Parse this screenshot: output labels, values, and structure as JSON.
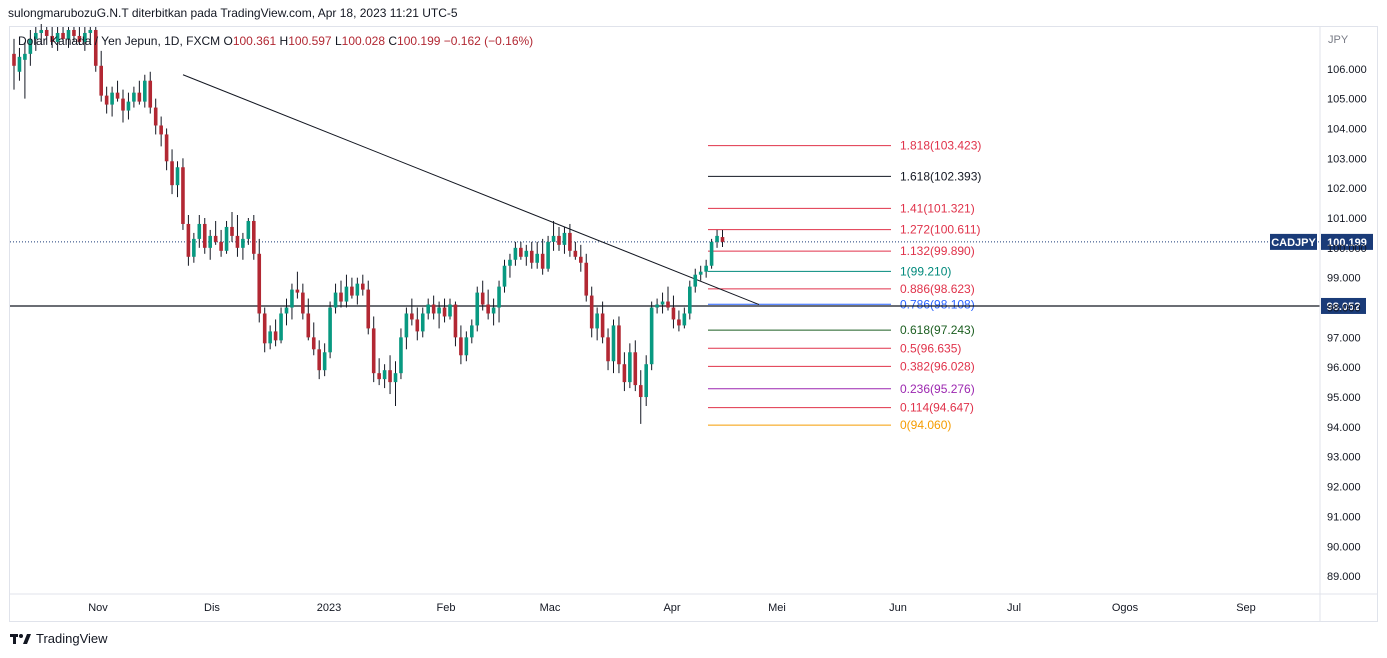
{
  "header": {
    "publish_line": "sulongmarubozuG.N.T diterbitkan pada TradingView.com, Apr 18, 2023 11:21 UTC-5"
  },
  "legend": {
    "instrument": "Dolar Kanada / Yen Jepun, 1D, FXCM",
    "o_label": "O",
    "o_value": "100.361",
    "h_label": "H",
    "h_value": "100.597",
    "l_label": "L",
    "l_value": "100.028",
    "c_label": "C",
    "c_value": "100.199",
    "change": "−0.162 (−0.16%)"
  },
  "footer": {
    "brand": "TradingView"
  },
  "colors": {
    "up": "#089981",
    "down": "#b22833",
    "price_badge": "#1a3b78"
  },
  "chart_data": {
    "type": "candlestick",
    "symbol": "CADJPY",
    "currency_label": "JPY",
    "ylim": [
      88.4,
      107.4
    ],
    "y_ticks": [
      89,
      90,
      91,
      92,
      93,
      94,
      95,
      96,
      97,
      98,
      99,
      100,
      101,
      102,
      103,
      104,
      105,
      106
    ],
    "y_tick_labels": [
      "89.000",
      "90.000",
      "91.000",
      "92.000",
      "93.000",
      "94.000",
      "95.000",
      "96.000",
      "97.000",
      "98.000",
      "99.000",
      "100.000",
      "101.000",
      "102.000",
      "103.000",
      "104.000",
      "105.000",
      "106.000"
    ],
    "x_labels": [
      "Nov",
      "Dis",
      "2023",
      "Feb",
      "Mac",
      "Apr",
      "Mei",
      "Jun",
      "Jul",
      "Ogos",
      "Sep"
    ],
    "last_price": {
      "label": "CADJPY",
      "value": 100.199,
      "text": "100.199"
    },
    "horizontal_line": {
      "value": 98.052,
      "text": "98.052"
    },
    "trendline": {
      "from": {
        "date": "2022-11-21",
        "price": 105.8
      },
      "to": {
        "date": "2023-04-18",
        "price": 98.1
      }
    },
    "fib_levels": [
      {
        "ratio": "1.818",
        "price": 103.423,
        "label": "1.818(103.423)",
        "color": "#e0324a"
      },
      {
        "ratio": "1.618",
        "price": 102.393,
        "label": "1.618(102.393)",
        "color": "#131722"
      },
      {
        "ratio": "1.41",
        "price": 101.321,
        "label": "1.41(101.321)",
        "color": "#e0324a"
      },
      {
        "ratio": "1.272",
        "price": 100.611,
        "label": "1.272(100.611)",
        "color": "#e0324a"
      },
      {
        "ratio": "1.132",
        "price": 99.89,
        "label": "1.132(99.890)",
        "color": "#e0324a"
      },
      {
        "ratio": "1",
        "price": 99.21,
        "label": "1(99.210)",
        "color": "#00897b"
      },
      {
        "ratio": "0.886",
        "price": 98.623,
        "label": "0.886(98.623)",
        "color": "#e0324a"
      },
      {
        "ratio": "0.786",
        "price": 98.108,
        "label": "0.786(98.108)",
        "color": "#2962ff"
      },
      {
        "ratio": "0.618",
        "price": 97.243,
        "label": "0.618(97.243)",
        "color": "#1b5e20"
      },
      {
        "ratio": "0.5",
        "price": 96.635,
        "label": "0.5(96.635)",
        "color": "#e0324a"
      },
      {
        "ratio": "0.382",
        "price": 96.028,
        "label": "0.382(96.028)",
        "color": "#e0324a"
      },
      {
        "ratio": "0.236",
        "price": 95.276,
        "label": "0.236(95.276)",
        "color": "#9c27b0"
      },
      {
        "ratio": "0.114",
        "price": 94.647,
        "label": "0.114(94.647)",
        "color": "#e0324a"
      },
      {
        "ratio": "0",
        "price": 94.06,
        "label": "0(94.060)",
        "color": "#f59c00"
      }
    ],
    "candles": [
      {
        "o": 106.5,
        "h": 107.0,
        "l": 105.3,
        "c": 106.1
      },
      {
        "o": 105.9,
        "h": 106.7,
        "l": 105.6,
        "c": 106.4
      },
      {
        "o": 106.3,
        "h": 106.9,
        "l": 105.0,
        "c": 106.5
      },
      {
        "o": 106.5,
        "h": 107.3,
        "l": 106.1,
        "c": 107.0
      },
      {
        "o": 107.0,
        "h": 107.4,
        "l": 106.6,
        "c": 107.2
      },
      {
        "o": 107.2,
        "h": 107.5,
        "l": 106.8,
        "c": 107.3
      },
      {
        "o": 107.3,
        "h": 107.4,
        "l": 106.8,
        "c": 107.1
      },
      {
        "o": 107.1,
        "h": 107.4,
        "l": 106.7,
        "c": 106.9
      },
      {
        "o": 106.9,
        "h": 107.4,
        "l": 106.6,
        "c": 107.2
      },
      {
        "o": 107.2,
        "h": 107.4,
        "l": 106.9,
        "c": 107.0
      },
      {
        "o": 107.0,
        "h": 107.4,
        "l": 106.7,
        "c": 107.3
      },
      {
        "o": 107.3,
        "h": 107.4,
        "l": 106.9,
        "c": 107.1
      },
      {
        "o": 107.1,
        "h": 107.4,
        "l": 106.8,
        "c": 106.9
      },
      {
        "o": 106.9,
        "h": 107.4,
        "l": 106.6,
        "c": 107.2
      },
      {
        "o": 107.2,
        "h": 107.4,
        "l": 106.8,
        "c": 107.3
      },
      {
        "o": 107.3,
        "h": 107.4,
        "l": 105.9,
        "c": 106.1
      },
      {
        "o": 106.1,
        "h": 106.6,
        "l": 104.9,
        "c": 105.1
      },
      {
        "o": 105.1,
        "h": 105.4,
        "l": 104.5,
        "c": 104.8
      },
      {
        "o": 104.8,
        "h": 105.4,
        "l": 104.4,
        "c": 105.2
      },
      {
        "o": 105.2,
        "h": 105.6,
        "l": 104.9,
        "c": 105.0
      },
      {
        "o": 105.0,
        "h": 105.3,
        "l": 104.2,
        "c": 104.6
      },
      {
        "o": 104.6,
        "h": 105.2,
        "l": 104.3,
        "c": 104.9
      },
      {
        "o": 104.9,
        "h": 105.4,
        "l": 104.7,
        "c": 105.2
      },
      {
        "o": 105.2,
        "h": 105.6,
        "l": 104.8,
        "c": 104.9
      },
      {
        "o": 104.9,
        "h": 105.8,
        "l": 104.7,
        "c": 105.6
      },
      {
        "o": 105.6,
        "h": 105.9,
        "l": 104.5,
        "c": 104.7
      },
      {
        "o": 104.7,
        "h": 105.0,
        "l": 103.8,
        "c": 104.1
      },
      {
        "o": 104.1,
        "h": 104.4,
        "l": 103.4,
        "c": 103.8
      },
      {
        "o": 103.8,
        "h": 104.0,
        "l": 102.6,
        "c": 102.9
      },
      {
        "o": 102.9,
        "h": 103.3,
        "l": 101.8,
        "c": 102.1
      },
      {
        "o": 102.1,
        "h": 102.9,
        "l": 101.7,
        "c": 102.7
      },
      {
        "o": 102.7,
        "h": 103.0,
        "l": 100.6,
        "c": 100.8
      },
      {
        "o": 100.8,
        "h": 101.1,
        "l": 99.4,
        "c": 99.7
      },
      {
        "o": 99.7,
        "h": 100.5,
        "l": 99.5,
        "c": 100.3
      },
      {
        "o": 100.3,
        "h": 101.1,
        "l": 100.0,
        "c": 100.8
      },
      {
        "o": 100.8,
        "h": 101.0,
        "l": 99.8,
        "c": 100.0
      },
      {
        "o": 100.0,
        "h": 100.6,
        "l": 99.6,
        "c": 100.4
      },
      {
        "o": 100.4,
        "h": 100.9,
        "l": 100.1,
        "c": 100.2
      },
      {
        "o": 100.2,
        "h": 100.6,
        "l": 99.7,
        "c": 99.9
      },
      {
        "o": 99.9,
        "h": 100.9,
        "l": 99.8,
        "c": 100.7
      },
      {
        "o": 100.7,
        "h": 101.2,
        "l": 100.2,
        "c": 100.4
      },
      {
        "o": 100.4,
        "h": 101.1,
        "l": 99.7,
        "c": 100.0
      },
      {
        "o": 100.0,
        "h": 100.5,
        "l": 99.6,
        "c": 100.3
      },
      {
        "o": 100.3,
        "h": 101.0,
        "l": 100.1,
        "c": 100.9
      },
      {
        "o": 100.9,
        "h": 101.1,
        "l": 99.6,
        "c": 99.8
      },
      {
        "o": 99.8,
        "h": 100.3,
        "l": 97.5,
        "c": 97.8
      },
      {
        "o": 97.8,
        "h": 98.0,
        "l": 96.5,
        "c": 96.8
      },
      {
        "o": 96.8,
        "h": 97.4,
        "l": 96.6,
        "c": 97.2
      },
      {
        "o": 97.2,
        "h": 97.6,
        "l": 96.7,
        "c": 96.9
      },
      {
        "o": 96.9,
        "h": 98.0,
        "l": 96.8,
        "c": 97.8
      },
      {
        "o": 97.8,
        "h": 98.3,
        "l": 97.4,
        "c": 98.0
      },
      {
        "o": 98.0,
        "h": 98.8,
        "l": 97.6,
        "c": 98.6
      },
      {
        "o": 98.6,
        "h": 99.2,
        "l": 98.3,
        "c": 98.5
      },
      {
        "o": 98.5,
        "h": 98.8,
        "l": 97.6,
        "c": 97.8
      },
      {
        "o": 97.8,
        "h": 98.3,
        "l": 96.9,
        "c": 97.0
      },
      {
        "o": 97.0,
        "h": 97.5,
        "l": 96.4,
        "c": 96.6
      },
      {
        "o": 96.6,
        "h": 96.9,
        "l": 95.6,
        "c": 95.9
      },
      {
        "o": 95.9,
        "h": 96.8,
        "l": 95.7,
        "c": 96.5
      },
      {
        "o": 96.5,
        "h": 98.2,
        "l": 96.3,
        "c": 98.0
      },
      {
        "o": 98.0,
        "h": 98.8,
        "l": 97.8,
        "c": 98.5
      },
      {
        "o": 98.5,
        "h": 98.9,
        "l": 98.0,
        "c": 98.2
      },
      {
        "o": 98.2,
        "h": 99.1,
        "l": 98.0,
        "c": 98.7
      },
      {
        "o": 98.7,
        "h": 99.0,
        "l": 98.3,
        "c": 98.4
      },
      {
        "o": 98.4,
        "h": 99.0,
        "l": 98.1,
        "c": 98.8
      },
      {
        "o": 98.8,
        "h": 99.1,
        "l": 98.4,
        "c": 98.6
      },
      {
        "o": 98.6,
        "h": 98.9,
        "l": 97.1,
        "c": 97.3
      },
      {
        "o": 97.3,
        "h": 97.7,
        "l": 95.5,
        "c": 95.8
      },
      {
        "o": 95.8,
        "h": 96.3,
        "l": 95.4,
        "c": 95.6
      },
      {
        "o": 95.6,
        "h": 96.1,
        "l": 95.3,
        "c": 95.9
      },
      {
        "o": 95.9,
        "h": 96.4,
        "l": 95.1,
        "c": 95.5
      },
      {
        "o": 95.5,
        "h": 96.2,
        "l": 94.7,
        "c": 95.8
      },
      {
        "o": 95.8,
        "h": 97.3,
        "l": 95.6,
        "c": 97.0
      },
      {
        "o": 97.0,
        "h": 98.0,
        "l": 96.6,
        "c": 97.8
      },
      {
        "o": 97.8,
        "h": 98.3,
        "l": 97.4,
        "c": 97.6
      },
      {
        "o": 97.6,
        "h": 98.0,
        "l": 96.9,
        "c": 97.2
      },
      {
        "o": 97.2,
        "h": 98.0,
        "l": 97.0,
        "c": 97.8
      },
      {
        "o": 97.8,
        "h": 98.3,
        "l": 97.6,
        "c": 98.1
      },
      {
        "o": 98.1,
        "h": 98.4,
        "l": 97.6,
        "c": 97.8
      },
      {
        "o": 97.8,
        "h": 98.2,
        "l": 97.3,
        "c": 98.0
      },
      {
        "o": 98.0,
        "h": 98.3,
        "l": 97.5,
        "c": 97.7
      },
      {
        "o": 97.7,
        "h": 98.3,
        "l": 97.6,
        "c": 98.1
      },
      {
        "o": 98.1,
        "h": 98.2,
        "l": 96.7,
        "c": 97.0
      },
      {
        "o": 97.0,
        "h": 97.4,
        "l": 96.1,
        "c": 96.4
      },
      {
        "o": 96.4,
        "h": 97.2,
        "l": 96.2,
        "c": 97.0
      },
      {
        "o": 97.0,
        "h": 97.6,
        "l": 96.8,
        "c": 97.4
      },
      {
        "o": 97.4,
        "h": 98.7,
        "l": 97.2,
        "c": 98.5
      },
      {
        "o": 98.5,
        "h": 98.9,
        "l": 97.9,
        "c": 98.1
      },
      {
        "o": 98.1,
        "h": 98.6,
        "l": 97.6,
        "c": 97.8
      },
      {
        "o": 97.8,
        "h": 98.3,
        "l": 97.4,
        "c": 98.0
      },
      {
        "o": 98.0,
        "h": 98.9,
        "l": 97.5,
        "c": 98.7
      },
      {
        "o": 98.7,
        "h": 99.6,
        "l": 98.5,
        "c": 99.4
      },
      {
        "o": 99.4,
        "h": 99.8,
        "l": 99.0,
        "c": 99.6
      },
      {
        "o": 99.6,
        "h": 100.2,
        "l": 99.4,
        "c": 100.0
      },
      {
        "o": 100.0,
        "h": 100.2,
        "l": 99.6,
        "c": 99.7
      },
      {
        "o": 99.7,
        "h": 100.1,
        "l": 99.4,
        "c": 99.9
      },
      {
        "o": 99.9,
        "h": 100.2,
        "l": 99.3,
        "c": 99.5
      },
      {
        "o": 99.5,
        "h": 100.2,
        "l": 99.3,
        "c": 99.8
      },
      {
        "o": 99.8,
        "h": 100.3,
        "l": 99.1,
        "c": 99.3
      },
      {
        "o": 99.3,
        "h": 100.4,
        "l": 99.2,
        "c": 100.2
      },
      {
        "o": 100.2,
        "h": 100.9,
        "l": 99.9,
        "c": 100.4
      },
      {
        "o": 100.4,
        "h": 100.7,
        "l": 99.9,
        "c": 100.1
      },
      {
        "o": 100.1,
        "h": 100.7,
        "l": 99.8,
        "c": 100.5
      },
      {
        "o": 100.5,
        "h": 100.8,
        "l": 99.7,
        "c": 99.9
      },
      {
        "o": 99.9,
        "h": 100.2,
        "l": 99.6,
        "c": 99.7
      },
      {
        "o": 99.7,
        "h": 100.1,
        "l": 99.2,
        "c": 99.5
      },
      {
        "o": 99.5,
        "h": 99.8,
        "l": 98.2,
        "c": 98.4
      },
      {
        "o": 98.4,
        "h": 98.7,
        "l": 97.0,
        "c": 97.3
      },
      {
        "o": 97.3,
        "h": 98.0,
        "l": 96.9,
        "c": 97.8
      },
      {
        "o": 97.8,
        "h": 98.2,
        "l": 96.8,
        "c": 97.0
      },
      {
        "o": 97.0,
        "h": 97.3,
        "l": 95.9,
        "c": 96.2
      },
      {
        "o": 96.2,
        "h": 97.6,
        "l": 95.8,
        "c": 97.4
      },
      {
        "o": 97.4,
        "h": 97.7,
        "l": 95.8,
        "c": 96.1
      },
      {
        "o": 96.1,
        "h": 96.5,
        "l": 95.2,
        "c": 95.5
      },
      {
        "o": 95.5,
        "h": 96.8,
        "l": 95.3,
        "c": 96.5
      },
      {
        "o": 96.5,
        "h": 96.9,
        "l": 95.2,
        "c": 95.4
      },
      {
        "o": 95.4,
        "h": 95.9,
        "l": 94.1,
        "c": 95.0
      },
      {
        "o": 95.0,
        "h": 96.4,
        "l": 94.7,
        "c": 96.1
      },
      {
        "o": 96.1,
        "h": 98.2,
        "l": 95.9,
        "c": 98.0
      },
      {
        "o": 98.0,
        "h": 98.3,
        "l": 97.8,
        "c": 98.1
      },
      {
        "o": 98.1,
        "h": 98.5,
        "l": 97.8,
        "c": 98.2
      },
      {
        "o": 98.2,
        "h": 98.7,
        "l": 97.9,
        "c": 98.0
      },
      {
        "o": 98.0,
        "h": 98.4,
        "l": 97.3,
        "c": 97.6
      },
      {
        "o": 97.6,
        "h": 97.9,
        "l": 97.2,
        "c": 97.4
      },
      {
        "o": 97.4,
        "h": 98.0,
        "l": 97.3,
        "c": 97.8
      },
      {
        "o": 97.8,
        "h": 98.9,
        "l": 97.6,
        "c": 98.7
      },
      {
        "o": 98.7,
        "h": 99.3,
        "l": 98.5,
        "c": 99.1
      },
      {
        "o": 99.1,
        "h": 99.4,
        "l": 98.9,
        "c": 99.2
      },
      {
        "o": 99.2,
        "h": 99.6,
        "l": 99.0,
        "c": 99.4
      },
      {
        "o": 99.4,
        "h": 100.3,
        "l": 99.3,
        "c": 100.2
      },
      {
        "o": 100.2,
        "h": 100.6,
        "l": 100.0,
        "c": 100.4
      },
      {
        "o": 100.361,
        "h": 100.597,
        "l": 100.028,
        "c": 100.199
      }
    ]
  }
}
